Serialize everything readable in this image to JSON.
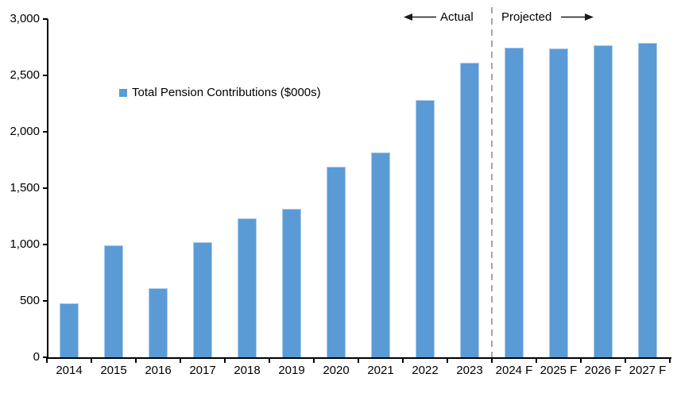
{
  "chart_data": {
    "type": "bar",
    "title": "",
    "legend_label": "Total Pension Contributions ($000s)",
    "categories": [
      "2014",
      "2015",
      "2016",
      "2017",
      "2018",
      "2019",
      "2020",
      "2021",
      "2022",
      "2023",
      "2024 F",
      "2025 F",
      "2026 F",
      "2027 F"
    ],
    "values": [
      480,
      990,
      610,
      1020,
      1230,
      1320,
      1690,
      1820,
      2280,
      2610,
      2750,
      2740,
      2770,
      2790
    ],
    "xlabel": "",
    "ylabel": "",
    "ylim": [
      0,
      3000
    ],
    "ytick_interval": 500,
    "ytick_labels": [
      "0",
      "500",
      "1,000",
      "1,500",
      "2,000",
      "2,500",
      "3,000"
    ],
    "grid": false,
    "legend_position": "inside-upper-left",
    "bar_color": "#5B9BD5",
    "bar_edge_color": "#AECBEA",
    "axis_color": "#000000",
    "annotations": {
      "actual_label": "Actual",
      "projected_label": "Projected",
      "divider_after_category": "2023",
      "divider_color": "#A6A6A6",
      "arrow_color": "#1a1a1a"
    }
  }
}
